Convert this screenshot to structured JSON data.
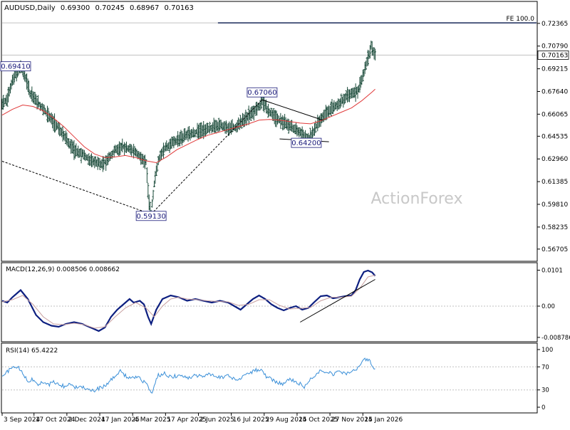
{
  "header": {
    "symbol": "AUDUSD,Daily",
    "open": "0.69300",
    "high": "0.70245",
    "low": "0.68967",
    "close": "0.70163"
  },
  "watermark": "ActionForex",
  "colors": {
    "background": "#ffffff",
    "bar": "#1b4b3a",
    "ma": "#e03a3a",
    "macd_main": "#0d1f80",
    "macd_signal": "#c8a0a0",
    "rsi": "#3a8fd8",
    "grid": "#c0c0c0",
    "annotation": "#000000",
    "label_text": "#1a1a7a"
  },
  "chart_data": [
    {
      "type": "line",
      "panel": "price",
      "style": "ohlc-bars",
      "y_ticks": [
        "0.72365",
        "0.70790",
        "0.69215",
        "0.67640",
        "0.66065",
        "0.64535",
        "0.62960",
        "0.61385",
        "0.59810",
        "0.58235",
        "0.56705"
      ],
      "ylim": [
        0.566,
        0.729
      ],
      "current_price": "0.70163",
      "x_range": [
        0,
        520
      ],
      "x_ticks": [
        {
          "x": 0,
          "label": "3 Sep 2024"
        },
        {
          "x": 31,
          "label": "17 Oct 2024"
        },
        {
          "x": 63,
          "label": "2 Dec 2024"
        },
        {
          "x": 95,
          "label": "17 Jan 2025"
        },
        {
          "x": 127,
          "label": "4 Mar 2025"
        },
        {
          "x": 159,
          "label": "17 Apr 2025"
        },
        {
          "x": 191,
          "label": "2 Jun 2025"
        },
        {
          "x": 223,
          "label": "16 Jul 2025"
        },
        {
          "x": 255,
          "label": "29 Aug 2025"
        },
        {
          "x": 287,
          "label": "14 Oct 2025"
        },
        {
          "x": 319,
          "label": "27 Nov 2025"
        },
        {
          "x": 351,
          "label": "14 Jan 2026"
        }
      ],
      "price_path": [
        [
          0,
          0.668
        ],
        [
          5,
          0.672
        ],
        [
          10,
          0.684
        ],
        [
          15,
          0.69
        ],
        [
          18,
          0.6941
        ],
        [
          22,
          0.688
        ],
        [
          27,
          0.675
        ],
        [
          33,
          0.67
        ],
        [
          40,
          0.664
        ],
        [
          48,
          0.657
        ],
        [
          55,
          0.651
        ],
        [
          62,
          0.644
        ],
        [
          70,
          0.636
        ],
        [
          78,
          0.633
        ],
        [
          85,
          0.629
        ],
        [
          92,
          0.627
        ],
        [
          98,
          0.626
        ],
        [
          104,
          0.63
        ],
        [
          110,
          0.636
        ],
        [
          117,
          0.638
        ],
        [
          124,
          0.637
        ],
        [
          130,
          0.634
        ],
        [
          136,
          0.63
        ],
        [
          140,
          0.6275
        ],
        [
          143,
          0.6
        ],
        [
          145,
          0.5913
        ],
        [
          148,
          0.612
        ],
        [
          152,
          0.629
        ],
        [
          158,
          0.637
        ],
        [
          165,
          0.641
        ],
        [
          172,
          0.643
        ],
        [
          180,
          0.646
        ],
        [
          188,
          0.648
        ],
        [
          196,
          0.65
        ],
        [
          204,
          0.651
        ],
        [
          212,
          0.653
        ],
        [
          220,
          0.651
        ],
        [
          228,
          0.652
        ],
        [
          236,
          0.657
        ],
        [
          244,
          0.662
        ],
        [
          250,
          0.666
        ],
        [
          253,
          0.6706
        ],
        [
          258,
          0.664
        ],
        [
          263,
          0.66
        ],
        [
          268,
          0.657
        ],
        [
          273,
          0.655
        ],
        [
          278,
          0.653
        ],
        [
          283,
          0.651
        ],
        [
          288,
          0.649
        ],
        [
          292,
          0.646
        ],
        [
          296,
          0.6425
        ],
        [
          299,
          0.644
        ],
        [
          304,
          0.65
        ],
        [
          310,
          0.657
        ],
        [
          316,
          0.662
        ],
        [
          322,
          0.665
        ],
        [
          328,
          0.668
        ],
        [
          334,
          0.672
        ],
        [
          340,
          0.675
        ],
        [
          346,
          0.677
        ],
        [
          350,
          0.684
        ],
        [
          354,
          0.694
        ],
        [
          357,
          0.702
        ],
        [
          359,
          0.7085
        ],
        [
          361,
          0.7035
        ],
        [
          363,
          0.7016
        ]
      ],
      "ma_path": [
        [
          0,
          0.66
        ],
        [
          10,
          0.664
        ],
        [
          20,
          0.667
        ],
        [
          30,
          0.666
        ],
        [
          40,
          0.663
        ],
        [
          50,
          0.658
        ],
        [
          60,
          0.652
        ],
        [
          70,
          0.645
        ],
        [
          80,
          0.638
        ],
        [
          90,
          0.633
        ],
        [
          100,
          0.6305
        ],
        [
          110,
          0.631
        ],
        [
          120,
          0.632
        ],
        [
          130,
          0.6305
        ],
        [
          140,
          0.6283
        ],
        [
          150,
          0.627
        ],
        [
          160,
          0.631
        ],
        [
          170,
          0.636
        ],
        [
          180,
          0.6395
        ],
        [
          190,
          0.643
        ],
        [
          200,
          0.646
        ],
        [
          210,
          0.648
        ],
        [
          220,
          0.65
        ],
        [
          230,
          0.652
        ],
        [
          240,
          0.654
        ],
        [
          250,
          0.6565
        ],
        [
          260,
          0.657
        ],
        [
          270,
          0.6565
        ],
        [
          280,
          0.6555
        ],
        [
          290,
          0.6545
        ],
        [
          300,
          0.654
        ],
        [
          310,
          0.656
        ],
        [
          320,
          0.659
        ],
        [
          330,
          0.662
        ],
        [
          340,
          0.665
        ],
        [
          350,
          0.67
        ],
        [
          360,
          0.676
        ],
        [
          363,
          0.678
        ]
      ],
      "fe_level": {
        "value": 0.724,
        "label": "FE 100.0",
        "x_start": 210
      },
      "annotations": [
        {
          "label": "0.69410",
          "x": 18,
          "y": 0.6941,
          "side": "left"
        },
        {
          "label": "0.59130",
          "x": 145,
          "y": 0.5913,
          "side": "below"
        },
        {
          "label": "0.67060",
          "x": 253,
          "y": 0.6706,
          "side": "above"
        },
        {
          "label": "0.64200",
          "x": 296,
          "y": 0.642,
          "side": "below"
        }
      ],
      "trendlines": [
        {
          "from": [
            145,
            0.5913
          ],
          "to": [
            253,
            0.6706
          ],
          "dashed": true
        },
        {
          "from": [
            0,
            0.628
          ],
          "to": [
            145,
            0.5913
          ],
          "dashed": true
        },
        {
          "from": [
            253,
            0.6706
          ],
          "to": [
            312,
            0.6565
          ],
          "dashed": false
        },
        {
          "from": [
            270,
            0.6435
          ],
          "to": [
            318,
            0.6415
          ],
          "dashed": false
        }
      ]
    },
    {
      "type": "line",
      "panel": "macd",
      "title": "MACD(12,26,9) 0.008506 0.008662",
      "y_ticks": [
        "0.0101",
        "0.00",
        "-0.008786"
      ],
      "ylim": [
        -0.0092,
        0.0108
      ],
      "series": [
        {
          "role": "main",
          "values": [
            [
              0,
              0.0015
            ],
            [
              5,
              0.001
            ],
            [
              10,
              0.0025
            ],
            [
              18,
              0.0045
            ],
            [
              25,
              0.002
            ],
            [
              33,
              -0.0025
            ],
            [
              40,
              -0.0045
            ],
            [
              48,
              -0.0055
            ],
            [
              55,
              -0.0058
            ],
            [
              62,
              -0.005
            ],
            [
              70,
              -0.0045
            ],
            [
              78,
              -0.005
            ],
            [
              86,
              -0.006
            ],
            [
              94,
              -0.007
            ],
            [
              100,
              -0.006
            ],
            [
              106,
              -0.003
            ],
            [
              112,
              -0.001
            ],
            [
              118,
              0.0005
            ],
            [
              124,
              0.002
            ],
            [
              128,
              0.001
            ],
            [
              134,
              0.0015
            ],
            [
              138,
              0.0005
            ],
            [
              142,
              -0.003
            ],
            [
              145,
              -0.005
            ],
            [
              150,
              -0.001
            ],
            [
              156,
              0.002
            ],
            [
              164,
              0.003
            ],
            [
              172,
              0.0025
            ],
            [
              180,
              0.0015
            ],
            [
              188,
              0.002
            ],
            [
              196,
              0.0015
            ],
            [
              204,
              0.001
            ],
            [
              212,
              0.0015
            ],
            [
              220,
              0.001
            ],
            [
              226,
              0.0
            ],
            [
              232,
              -0.001
            ],
            [
              238,
              0.0005
            ],
            [
              244,
              0.002
            ],
            [
              250,
              0.003
            ],
            [
              256,
              0.002
            ],
            [
              262,
              0.0005
            ],
            [
              268,
              -0.0005
            ],
            [
              274,
              -0.0012
            ],
            [
              280,
              -0.0005
            ],
            [
              286,
              0.0
            ],
            [
              292,
              -0.001
            ],
            [
              298,
              -0.0005
            ],
            [
              304,
              0.0012
            ],
            [
              310,
              0.0028
            ],
            [
              316,
              0.003
            ],
            [
              322,
              0.0022
            ],
            [
              328,
              0.0025
            ],
            [
              334,
              0.0028
            ],
            [
              340,
              0.003
            ],
            [
              344,
              0.0045
            ],
            [
              348,
              0.0075
            ],
            [
              352,
              0.0096
            ],
            [
              356,
              0.01
            ],
            [
              360,
              0.0095
            ],
            [
              363,
              0.0085
            ]
          ]
        },
        {
          "role": "signal",
          "values": [
            [
              0,
              0.0012
            ],
            [
              10,
              0.0018
            ],
            [
              20,
              0.003
            ],
            [
              30,
              0.0005
            ],
            [
              40,
              -0.003
            ],
            [
              50,
              -0.005
            ],
            [
              60,
              -0.0052
            ],
            [
              70,
              -0.0048
            ],
            [
              80,
              -0.0052
            ],
            [
              90,
              -0.0062
            ],
            [
              100,
              -0.0058
            ],
            [
              110,
              -0.003
            ],
            [
              120,
              -0.0005
            ],
            [
              130,
              0.001
            ],
            [
              140,
              -0.0005
            ],
            [
              148,
              -0.003
            ],
            [
              156,
              0.0
            ],
            [
              164,
              0.002
            ],
            [
              172,
              0.0025
            ],
            [
              180,
              0.002
            ],
            [
              190,
              0.0018
            ],
            [
              200,
              0.0015
            ],
            [
              210,
              0.0013
            ],
            [
              220,
              0.0012
            ],
            [
              230,
              0.0002
            ],
            [
              240,
              0.0005
            ],
            [
              250,
              0.0018
            ],
            [
              260,
              0.0018
            ],
            [
              270,
              0.0002
            ],
            [
              280,
              -0.0008
            ],
            [
              290,
              -0.0006
            ],
            [
              300,
              -0.0004
            ],
            [
              310,
              0.0015
            ],
            [
              320,
              0.0025
            ],
            [
              330,
              0.0025
            ],
            [
              340,
              0.0028
            ],
            [
              348,
              0.005
            ],
            [
              356,
              0.0082
            ],
            [
              363,
              0.0087
            ]
          ]
        }
      ],
      "trendline": {
        "from": [
          290,
          -0.0045
        ],
        "to": [
          363,
          0.0075
        ]
      }
    },
    {
      "type": "line",
      "panel": "rsi",
      "title": "RSI(14) 65.4222",
      "y_ticks": [
        "100",
        "70",
        "30",
        "0"
      ],
      "ylim": [
        0,
        100
      ],
      "levels": [
        70,
        30
      ],
      "values": [
        [
          0,
          52
        ],
        [
          4,
          60
        ],
        [
          8,
          66
        ],
        [
          12,
          70
        ],
        [
          16,
          68
        ],
        [
          20,
          58
        ],
        [
          25,
          45
        ],
        [
          30,
          48
        ],
        [
          35,
          40
        ],
        [
          40,
          42
        ],
        [
          45,
          38
        ],
        [
          50,
          44
        ],
        [
          55,
          40
        ],
        [
          60,
          36
        ],
        [
          65,
          40
        ],
        [
          70,
          34
        ],
        [
          75,
          38
        ],
        [
          80,
          35
        ],
        [
          85,
          30
        ],
        [
          90,
          28
        ],
        [
          95,
          34
        ],
        [
          100,
          36
        ],
        [
          105,
          46
        ],
        [
          110,
          54
        ],
        [
          115,
          62
        ],
        [
          120,
          55
        ],
        [
          125,
          50
        ],
        [
          130,
          52
        ],
        [
          135,
          48
        ],
        [
          140,
          42
        ],
        [
          143,
          30
        ],
        [
          145,
          22
        ],
        [
          148,
          40
        ],
        [
          152,
          55
        ],
        [
          158,
          58
        ],
        [
          165,
          52
        ],
        [
          172,
          56
        ],
        [
          180,
          50
        ],
        [
          188,
          56
        ],
        [
          196,
          53
        ],
        [
          204,
          58
        ],
        [
          212,
          52
        ],
        [
          220,
          55
        ],
        [
          226,
          48
        ],
        [
          232,
          50
        ],
        [
          238,
          58
        ],
        [
          244,
          62
        ],
        [
          250,
          66
        ],
        [
          254,
          60
        ],
        [
          258,
          52
        ],
        [
          262,
          48
        ],
        [
          266,
          45
        ],
        [
          270,
          42
        ],
        [
          274,
          40
        ],
        [
          278,
          50
        ],
        [
          282,
          48
        ],
        [
          286,
          45
        ],
        [
          290,
          40
        ],
        [
          294,
          36
        ],
        [
          298,
          44
        ],
        [
          304,
          55
        ],
        [
          310,
          65
        ],
        [
          316,
          62
        ],
        [
          322,
          58
        ],
        [
          328,
          64
        ],
        [
          334,
          58
        ],
        [
          340,
          60
        ],
        [
          344,
          66
        ],
        [
          348,
          72
        ],
        [
          352,
          80
        ],
        [
          355,
          85
        ],
        [
          358,
          78
        ],
        [
          361,
          68
        ],
        [
          363,
          65
        ]
      ]
    }
  ]
}
